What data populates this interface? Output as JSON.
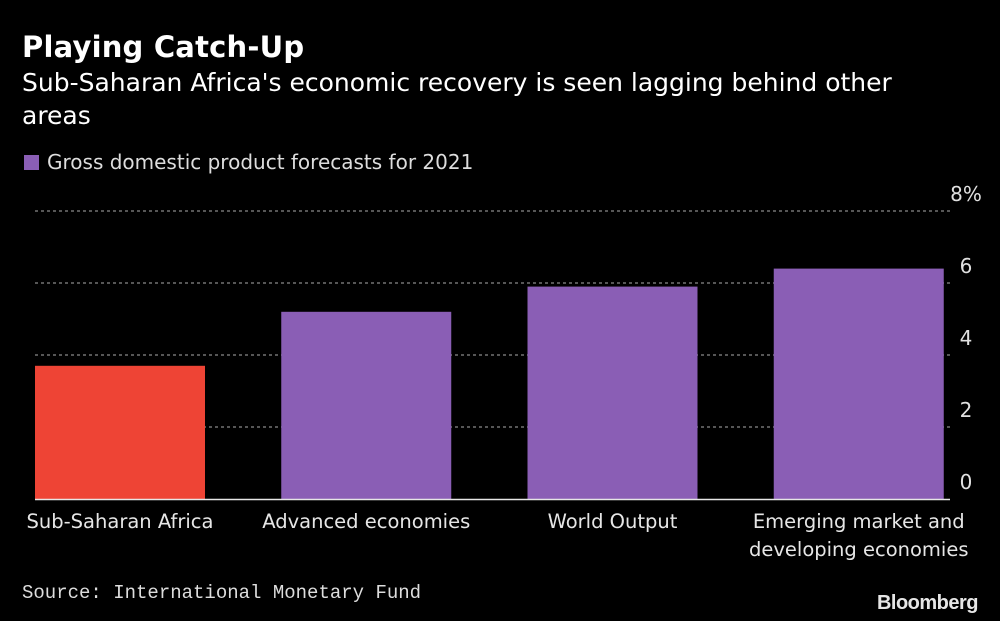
{
  "chart_data": {
    "type": "bar",
    "title": "Playing Catch-Up",
    "subtitle": "Sub-Saharan Africa's economic recovery is seen lagging behind other areas",
    "legend": [
      {
        "name": "Gross domestic product forecasts for 2021",
        "color": "#8a5eb5"
      }
    ],
    "categories": [
      [
        "Sub-Saharan Africa"
      ],
      [
        "Advanced economies"
      ],
      [
        "World Output"
      ],
      [
        "Emerging market and",
        "developing economies"
      ]
    ],
    "series": [
      {
        "name": "Gross domestic product forecasts for 2021",
        "values": [
          3.7,
          5.2,
          5.9,
          6.4
        ]
      }
    ],
    "bar_colors": [
      "#ee4435",
      "#8a5eb5",
      "#8a5eb5",
      "#8a5eb5"
    ],
    "yticks": [
      0,
      2,
      4,
      6,
      8
    ],
    "ytick_labels": [
      "0",
      "2",
      "4",
      "6",
      "8%"
    ],
    "ylim": [
      0,
      8
    ],
    "xlabel": "",
    "ylabel": "",
    "grid": true,
    "legend_position": "top-left",
    "y_axis_position": "right",
    "source": "Source: International Monetary Fund",
    "brand": "Bloomberg"
  }
}
